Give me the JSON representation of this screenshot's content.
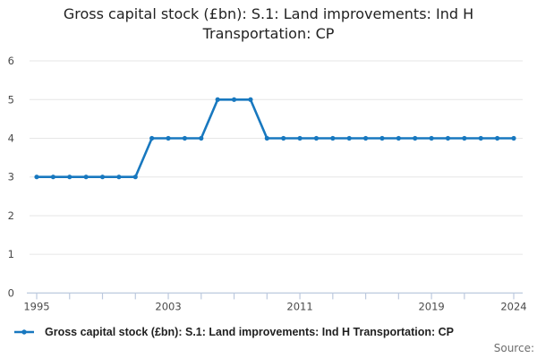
{
  "title": "Gross capital stock (£bn): S.1: Land improvements: Ind H Transportation: CP",
  "legend": {
    "label": "Gross capital stock (£bn): S.1: Land improvements: Ind H Transportation: CP"
  },
  "source": {
    "label": "Source:"
  },
  "colors": {
    "line": "#1878bf",
    "marker": "#1878bf",
    "grid": "#e6e6e6",
    "axis": "#bcc9de",
    "tick_text": "#4a4a4a",
    "title_text": "#222222",
    "source_text": "#6d6d6d"
  },
  "chart_data": {
    "type": "line",
    "title": "Gross capital stock (£bn): S.1: Land improvements: Ind H Transportation: CP",
    "xlabel": "",
    "ylabel": "",
    "xlim": [
      1995,
      2024
    ],
    "ylim": [
      0,
      6
    ],
    "grid": "horizontal",
    "legend_position": "bottom-left",
    "markers": true,
    "x": [
      1995,
      1996,
      1997,
      1998,
      1999,
      2000,
      2001,
      2002,
      2003,
      2004,
      2005,
      2006,
      2007,
      2008,
      2009,
      2010,
      2011,
      2012,
      2013,
      2014,
      2015,
      2016,
      2017,
      2018,
      2019,
      2020,
      2021,
      2022,
      2023,
      2024
    ],
    "series": [
      {
        "name": "Gross capital stock (£bn): S.1: Land improvements: Ind H Transportation: CP",
        "values": [
          3,
          3,
          3,
          3,
          3,
          3,
          3,
          4,
          4,
          4,
          4,
          5,
          5,
          5,
          4,
          4,
          4,
          4,
          4,
          4,
          4,
          4,
          4,
          4,
          4,
          4,
          4,
          4,
          4,
          4
        ]
      }
    ],
    "yticks": [
      0,
      1,
      2,
      3,
      4,
      5,
      6
    ],
    "ytick_labels": [
      "0",
      "1",
      "2",
      "3",
      "4",
      "5",
      "6"
    ],
    "xticks": [
      1995,
      1997,
      1999,
      2001,
      2003,
      2005,
      2007,
      2009,
      2011,
      2013,
      2015,
      2017,
      2019,
      2021,
      2024
    ],
    "xtick_labeled": [
      1995,
      2003,
      2011,
      2019,
      2024
    ],
    "xtick_labels": [
      "1995",
      "2003",
      "2011",
      "2019",
      "2024"
    ]
  }
}
